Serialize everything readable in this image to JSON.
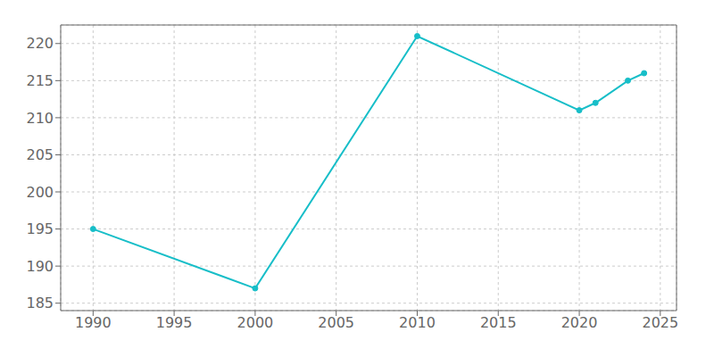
{
  "chart_data": {
    "type": "line",
    "x": [
      1990,
      2000,
      2010,
      2020,
      2021,
      2023,
      2024
    ],
    "values": [
      195,
      187,
      221,
      211,
      212,
      215,
      216
    ],
    "color": "#17BEC8",
    "marker": "circle",
    "xlim": [
      1988,
      2026
    ],
    "ylim": [
      184,
      222.5
    ],
    "xticks": [
      1990,
      1995,
      2000,
      2005,
      2010,
      2015,
      2020,
      2025
    ],
    "yticks": [
      185,
      190,
      195,
      200,
      205,
      210,
      215,
      220
    ],
    "grid": true
  }
}
